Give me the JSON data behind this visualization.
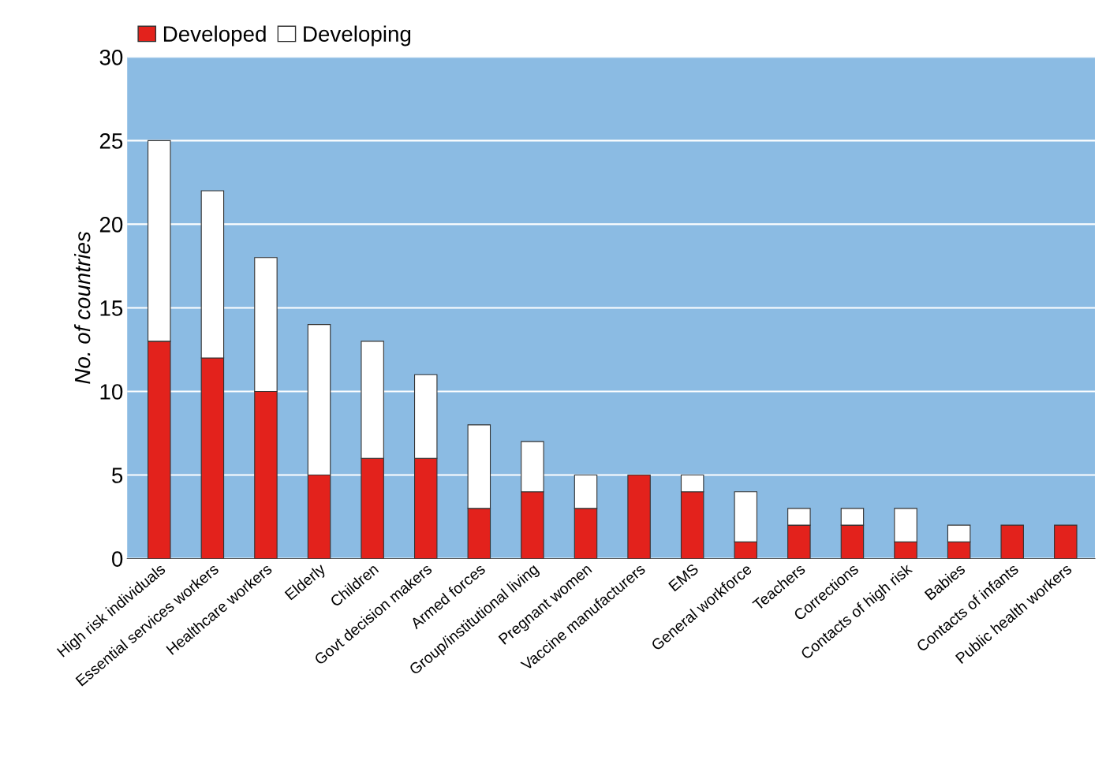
{
  "chart_data": {
    "type": "bar",
    "stacked": true,
    "ylabel": "No. of countries",
    "categories": [
      "High risk individuals",
      "Essential services workers",
      "Healthcare workers",
      "Elderly",
      "Children",
      "Govt decision makers",
      "Armed forces",
      "Group/institutional living",
      "Pregnant women",
      "Vaccine manufacturers",
      "EMS",
      "General workforce",
      "Teachers",
      "Corrections",
      "Contacts of high risk",
      "Babies",
      "Contacts of infants",
      "Public health workers"
    ],
    "series": [
      {
        "name": "Developed",
        "color": "#e3221c",
        "values": [
          13,
          12,
          10,
          5,
          6,
          6,
          3,
          4,
          3,
          5,
          4,
          1,
          2,
          2,
          1,
          1,
          2,
          2
        ]
      },
      {
        "name": "Developing",
        "color": "#ffffff",
        "values": [
          12,
          10,
          8,
          9,
          7,
          5,
          5,
          3,
          2,
          0,
          1,
          3,
          1,
          1,
          2,
          1,
          0,
          0
        ]
      }
    ],
    "ylim": [
      0,
      30
    ],
    "yticks": [
      0,
      5,
      10,
      15,
      20,
      25,
      30
    ],
    "grid": "y",
    "legend": "top left"
  }
}
